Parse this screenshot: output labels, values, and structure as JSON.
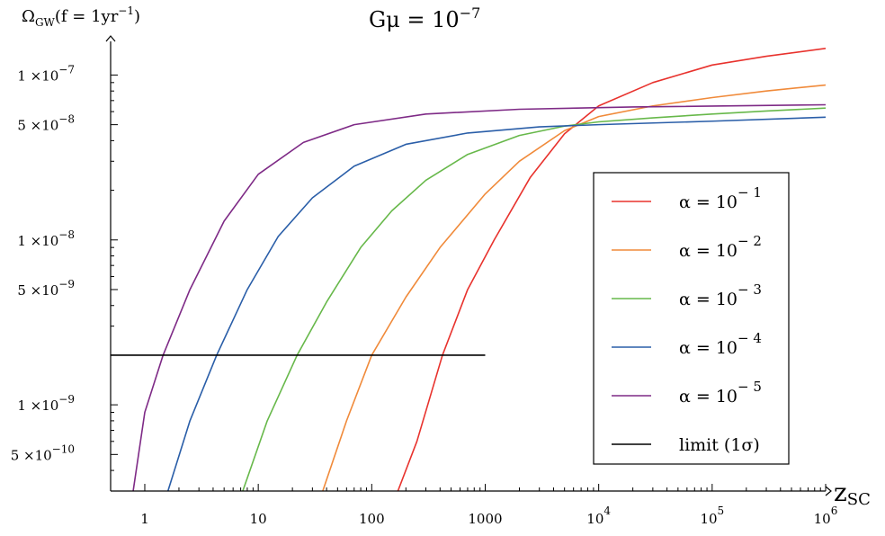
{
  "chart_data": {
    "type": "line",
    "title": "Gμ = 10",
    "title_exp": "−7",
    "ylabel": "Ω",
    "ylabel_sub": "GW",
    "ylabel_rest": "(f = 1yr",
    "ylabel_exp": "−1",
    "ylabel_close": ")",
    "xlabel": "z",
    "xlabel_sub": "SC",
    "x_scale": "log",
    "y_scale": "log",
    "xlim": [
      0.5,
      1000000
    ],
    "ylim": [
      3e-10,
      1.6e-07
    ],
    "x_ticks": [
      {
        "value": 1,
        "base": "1",
        "exp": ""
      },
      {
        "value": 10,
        "base": "10",
        "exp": ""
      },
      {
        "value": 100,
        "base": "100",
        "exp": ""
      },
      {
        "value": 1000,
        "base": "1000",
        "exp": ""
      },
      {
        "value": 10000,
        "base": "10",
        "exp": "4"
      },
      {
        "value": 100000,
        "base": "10",
        "exp": "5"
      },
      {
        "value": 1000000,
        "base": "10",
        "exp": "6"
      }
    ],
    "y_ticks": [
      {
        "value": 1e-07,
        "base": "1 ×10",
        "exp": "−7"
      },
      {
        "value": 5e-08,
        "base": "5 ×10",
        "exp": "−8"
      },
      {
        "value": 1e-08,
        "base": "1 ×10",
        "exp": "−8"
      },
      {
        "value": 5e-09,
        "base": "5 ×10",
        "exp": "−9"
      },
      {
        "value": 1e-09,
        "base": "1 ×10",
        "exp": "−9"
      },
      {
        "value": 5e-10,
        "base": "5 ×10",
        "exp": "−10"
      }
    ],
    "legend_position": "right",
    "series": [
      {
        "name": "α = 10",
        "name_exp": "− 1",
        "color": "#e8322d",
        "x": [
          170,
          250,
          420,
          700,
          1200,
          2500,
          5000,
          10000,
          30000,
          100000,
          300000,
          1000000
        ],
        "y": [
          3e-10,
          6e-10,
          2e-09,
          5e-09,
          1e-08,
          2.4e-08,
          4.4e-08,
          6.5e-08,
          9e-08,
          1.15e-07,
          1.3e-07,
          1.45e-07
        ]
      },
      {
        "name": "α = 10",
        "name_exp": "− 2",
        "color": "#f08a3a",
        "x": [
          37,
          60,
          100,
          200,
          400,
          1000,
          2000,
          5000,
          10000,
          30000,
          100000,
          300000,
          1000000
        ],
        "y": [
          3e-10,
          8e-10,
          2e-09,
          4.5e-09,
          9e-09,
          1.9e-08,
          3e-08,
          4.6e-08,
          5.6e-08,
          6.5e-08,
          7.3e-08,
          8e-08,
          8.7e-08
        ]
      },
      {
        "name": "α = 10",
        "name_exp": "− 3",
        "color": "#67b84a",
        "x": [
          7.3,
          12,
          22,
          40,
          80,
          150,
          300,
          700,
          2000,
          5000,
          10000,
          30000,
          100000,
          300000,
          1000000
        ],
        "y": [
          3e-10,
          8e-10,
          2e-09,
          4.2e-09,
          9e-09,
          1.5e-08,
          2.3e-08,
          3.3e-08,
          4.3e-08,
          4.9e-08,
          5.2e-08,
          5.5e-08,
          5.8e-08,
          6.05e-08,
          6.3e-08
        ]
      },
      {
        "name": "α = 10",
        "name_exp": "− 4",
        "color": "#2a5ea8",
        "x": [
          1.6,
          2.5,
          4.3,
          8,
          15,
          30,
          70,
          200,
          700,
          3000,
          10000,
          100000,
          1000000
        ],
        "y": [
          3e-10,
          8e-10,
          2e-09,
          5e-09,
          1.05e-08,
          1.8e-08,
          2.8e-08,
          3.8e-08,
          4.45e-08,
          4.85e-08,
          5e-08,
          5.25e-08,
          5.55e-08
        ]
      },
      {
        "name": "α = 10",
        "name_exp": "− 5",
        "color": "#7e2a86",
        "x": [
          0.79,
          1.0,
          1.45,
          2.5,
          5,
          10,
          25,
          70,
          300,
          2000,
          20000,
          1000000
        ],
        "y": [
          3e-10,
          9e-10,
          2e-09,
          5e-09,
          1.3e-08,
          2.5e-08,
          3.9e-08,
          5e-08,
          5.8e-08,
          6.2e-08,
          6.4e-08,
          6.6e-08
        ]
      },
      {
        "name": "limit  (1σ)",
        "name_exp": "",
        "color": "#000000",
        "x": [
          0.5,
          1000
        ],
        "y": [
          2e-09,
          2e-09
        ]
      }
    ]
  }
}
